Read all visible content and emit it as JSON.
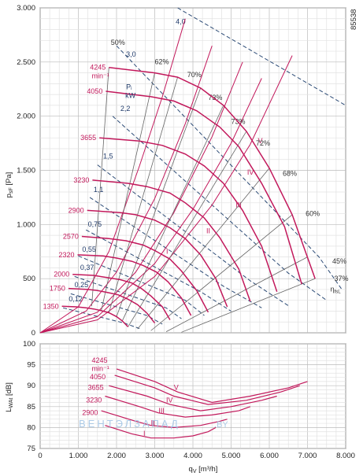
{
  "figure_id": "85538",
  "chart_data": [
    {
      "type": "line",
      "xlabel": "q",
      "xlabel_sub": "V",
      "xlabel_unit": "[m³/h]",
      "xlim": [
        0,
        8000
      ],
      "x_ticks": [
        0,
        1000,
        2000,
        3000,
        4000,
        5000,
        6000,
        7000,
        8000
      ],
      "x_tick_labels": [
        "0",
        "1.000",
        "2.000",
        "3.000",
        "4.000",
        "5.000",
        "6.000",
        "7.000",
        "8.000"
      ],
      "ylabel": "p",
      "ylabel_sub": "sF",
      "ylabel_unit": "[Pa]",
      "ylim": [
        0,
        3000
      ],
      "y_ticks": [
        0,
        500,
        1000,
        1500,
        2000,
        2500,
        3000
      ],
      "y_tick_labels": [
        "0",
        "500",
        "1.000",
        "1.500",
        "2.000",
        "2.500",
        "3.000"
      ],
      "grid": true,
      "speed_unit": "min⁻¹",
      "power_unit_label": "Pᵢ",
      "power_unit": "kW",
      "efficiency_label": "η",
      "efficiency_label_sub": "fsL",
      "speed_curves": [
        {
          "rpm": "4245",
          "x": [
            1800,
            3000,
            3600,
            4200,
            4800,
            5400,
            6000,
            6600,
            7200
          ],
          "y": [
            2450,
            2400,
            2360,
            2260,
            2100,
            1860,
            1520,
            1090,
            500
          ]
        },
        {
          "rpm": "4050",
          "x": [
            1720,
            2900,
            3500,
            4100,
            4700,
            5200,
            5800,
            6400,
            6850
          ],
          "y": [
            2230,
            2180,
            2140,
            2050,
            1900,
            1720,
            1380,
            980,
            450
          ]
        },
        {
          "rpm": "3655",
          "x": [
            1550,
            2600,
            3200,
            3800,
            4300,
            4800,
            5300,
            5800,
            6200
          ],
          "y": [
            1800,
            1770,
            1730,
            1650,
            1540,
            1380,
            1130,
            800,
            380
          ]
        },
        {
          "rpm": "3230",
          "x": [
            1370,
            2300,
            2800,
            3400,
            3800,
            4300,
            4700,
            5200,
            5500
          ],
          "y": [
            1410,
            1380,
            1350,
            1290,
            1200,
            1060,
            880,
            590,
            290
          ]
        },
        {
          "rpm": "2900",
          "x": [
            1230,
            2100,
            2500,
            3000,
            3400,
            3800,
            4200,
            4600,
            4900
          ],
          "y": [
            1130,
            1110,
            1090,
            1040,
            970,
            870,
            720,
            500,
            240
          ]
        },
        {
          "rpm": "2570",
          "x": [
            1090,
            1800,
            2250,
            2700,
            3000,
            3400,
            3700,
            4100,
            4400
          ],
          "y": [
            890,
            870,
            850,
            810,
            760,
            680,
            570,
            390,
            190
          ]
        },
        {
          "rpm": "2320",
          "x": [
            980,
            1650,
            2000,
            2400,
            2700,
            3050,
            3350,
            3700,
            3950
          ],
          "y": [
            720,
            710,
            690,
            660,
            620,
            560,
            470,
            320,
            160
          ]
        },
        {
          "rpm": "2000",
          "x": [
            850,
            1400,
            1750,
            2100,
            2400,
            2650,
            2900,
            3200,
            3400
          ],
          "y": [
            540,
            530,
            510,
            490,
            460,
            410,
            340,
            240,
            120
          ]
        },
        {
          "rpm": "1750",
          "x": [
            740,
            1250,
            1500,
            1800,
            2050,
            2300,
            2550,
            2800,
            3000
          ],
          "y": [
            410,
            400,
            390,
            370,
            350,
            310,
            260,
            180,
            90
          ]
        },
        {
          "rpm": "1350",
          "x": [
            570,
            950,
            1200,
            1400,
            1600,
            1800,
            2000,
            2150,
            2300
          ],
          "y": [
            245,
            240,
            230,
            220,
            205,
            185,
            150,
            110,
            55
          ]
        }
      ],
      "rpm_label_anchors": [
        {
          "rpm": "4245",
          "x": 1800,
          "y": 2450
        },
        {
          "rpm": "4050",
          "x": 1720,
          "y": 2230
        },
        {
          "rpm": "3655",
          "x": 1550,
          "y": 1800
        },
        {
          "rpm": "3230",
          "x": 1370,
          "y": 1410
        },
        {
          "rpm": "2900",
          "x": 1230,
          "y": 1130
        },
        {
          "rpm": "2570",
          "x": 1090,
          "y": 890
        },
        {
          "rpm": "2320",
          "x": 980,
          "y": 720
        },
        {
          "rpm": "2000",
          "x": 850,
          "y": 540
        },
        {
          "rpm": "1750",
          "x": 740,
          "y": 410
        },
        {
          "rpm": "1350",
          "x": 570,
          "y": 245
        }
      ],
      "system_curves": [
        {
          "name": "V",
          "x": [
            0,
            1500,
            3000,
            4500,
            5500,
            6600
          ],
          "y": [
            0,
            120,
            520,
            1180,
            1740,
            2560
          ],
          "label_at": {
            "x": 5700,
            "y": 1750
          }
        },
        {
          "name": "IV",
          "x": [
            0,
            1500,
            3000,
            4000,
            5000,
            5800
          ],
          "y": [
            0,
            150,
            640,
            1140,
            1750,
            2350
          ],
          "label_at": {
            "x": 5420,
            "y": 1460
          }
        },
        {
          "name": "III",
          "x": [
            0,
            1500,
            2500,
            3500,
            4500,
            5300
          ],
          "y": [
            0,
            190,
            560,
            1110,
            1810,
            2500
          ],
          "label_at": {
            "x": 5120,
            "y": 1160
          }
        },
        {
          "name": "II",
          "x": [
            0,
            1200,
            2000,
            3000,
            3800,
            4500
          ],
          "y": [
            0,
            200,
            560,
            1240,
            1930,
            2650
          ],
          "label_at": {
            "x": 4350,
            "y": 920
          }
        },
        {
          "name": "I",
          "x": [
            0,
            1000,
            1800,
            2600,
            3200,
            3800
          ],
          "y": [
            0,
            240,
            750,
            1540,
            2180,
            2900
          ],
          "label_at": {
            "x": 3300,
            "y": 730
          }
        }
      ],
      "power_lines": [
        {
          "label": "4,0",
          "x": [
            3600,
            8000
          ],
          "y": [
            3000,
            2100
          ],
          "label_at": {
            "x": 3550,
            "y": 2850
          }
        },
        {
          "label": "3,0",
          "x": [
            2000,
            7300,
            7900
          ],
          "y": [
            2650,
            700,
            400
          ],
          "label_at": {
            "x": 2250,
            "y": 2550
          }
        },
        {
          "label": "2,2",
          "x": [
            1900,
            6500,
            7500
          ],
          "y": [
            2000,
            550,
            300
          ],
          "label_at": {
            "x": 2100,
            "y": 2050
          }
        },
        {
          "label": "1,5",
          "x": [
            1500,
            5500,
            6500
          ],
          "y": [
            1550,
            480,
            250
          ],
          "label_at": {
            "x": 1650,
            "y": 1610
          }
        },
        {
          "label": "1,1",
          "x": [
            1300,
            4800,
            5800
          ],
          "y": [
            1250,
            430,
            230
          ],
          "label_at": {
            "x": 1400,
            "y": 1300
          }
        },
        {
          "label": "0,75",
          "x": [
            1200,
            4200,
            5000
          ],
          "y": [
            950,
            380,
            200
          ],
          "label_at": {
            "x": 1250,
            "y": 980
          }
        },
        {
          "label": "0,55",
          "x": [
            1000,
            3800,
            4300
          ],
          "y": [
            710,
            300,
            160
          ],
          "label_at": {
            "x": 1100,
            "y": 750
          }
        },
        {
          "label": "0,37",
          "x": [
            900,
            3300,
            3700
          ],
          "y": [
            520,
            230,
            130
          ],
          "label_at": {
            "x": 1050,
            "y": 580
          }
        },
        {
          "label": "0,25",
          "x": [
            800,
            2800,
            3200
          ],
          "y": [
            360,
            160,
            80
          ],
          "label_at": {
            "x": 900,
            "y": 420
          }
        },
        {
          "label": "0,12",
          "x": [
            600,
            2200,
            2600
          ],
          "y": [
            230,
            90,
            40
          ],
          "label_at": {
            "x": 750,
            "y": 290
          }
        }
      ],
      "efficiency_lines": [
        {
          "label": "50%",
          "x1": 1800,
          "y1": 2450,
          "x2": 1350,
          "y2": 245,
          "label_at": {
            "x": 1850,
            "y": 2660
          }
        },
        {
          "label": "62%",
          "x1": 3000,
          "y1": 2400,
          "x2": 1600,
          "y2": 205,
          "label_at": {
            "x": 3000,
            "y": 2480
          }
        },
        {
          "label": "70%",
          "x1": 3600,
          "y1": 2360,
          "x2": 1800,
          "y2": 185,
          "label_at": {
            "x": 3850,
            "y": 2360
          }
        },
        {
          "label": "73%",
          "x1": 4200,
          "y1": 2260,
          "x2": 2000,
          "y2": 150,
          "label_at": {
            "x": 4400,
            "y": 2150
          }
        },
        {
          "label": "73%",
          "x1": 4800,
          "y1": 2100,
          "x2": 2150,
          "y2": 110,
          "label_at": {
            "x": 5000,
            "y": 1930
          }
        },
        {
          "label": "72%",
          "x1": 5400,
          "y1": 1860,
          "x2": 2300,
          "y2": 55,
          "label_at": {
            "x": 5650,
            "y": 1730
          }
        },
        {
          "label": "68%",
          "x1": 6000,
          "y1": 1520,
          "x2": 2550,
          "y2": 35,
          "label_at": {
            "x": 6350,
            "y": 1450
          }
        },
        {
          "label": "60%",
          "x1": 6600,
          "y1": 1090,
          "x2": 2900,
          "y2": 20,
          "label_at": {
            "x": 6950,
            "y": 1080
          }
        },
        {
          "label": "45%",
          "x1": 7000,
          "y1": 700,
          "x2": 3300,
          "y2": 10,
          "label_at": {
            "x": 7650,
            "y": 640
          }
        },
        {
          "label": "37%",
          "x1": 7200,
          "y1": 500,
          "x2": 3700,
          "y2": 5,
          "label_at": {
            "x": 7700,
            "y": 480
          }
        }
      ]
    },
    {
      "type": "line",
      "xlim": [
        0,
        8000
      ],
      "ylim": [
        75,
        100
      ],
      "y_ticks": [
        75,
        80,
        85,
        90,
        95,
        100
      ],
      "y_tick_labels": [
        "75",
        "80",
        "85",
        "90",
        "95",
        "100"
      ],
      "ylabel": "L",
      "ylabel_sub": "WAt",
      "ylabel_unit": "[dB]",
      "grid": true,
      "speed_unit": "min⁻¹",
      "noise_curves": [
        {
          "rpm": "4245",
          "x": [
            2000,
            3000,
            3600,
            4500,
            5500,
            6500,
            7000
          ],
          "y": [
            94.0,
            91.0,
            88.5,
            86.0,
            87.5,
            89.5,
            91.0
          ]
        },
        {
          "rpm": "4050",
          "x": [
            1950,
            3000,
            3500,
            4400,
            5400,
            6300,
            6800
          ],
          "y": [
            92.5,
            89.5,
            87.5,
            85.5,
            86.5,
            88.5,
            90.0
          ]
        },
        {
          "rpm": "3655",
          "x": [
            1800,
            2800,
            3400,
            4200,
            5000,
            5800,
            6200
          ],
          "y": [
            90.0,
            87.5,
            85.5,
            84.0,
            85.0,
            86.5,
            87.5
          ]
        },
        {
          "rpm": "3230",
          "x": [
            1700,
            2600,
            3100,
            3800,
            4500,
            5200,
            5500
          ],
          "y": [
            87.5,
            85.0,
            83.5,
            82.5,
            83.0,
            84.0,
            85.0
          ]
        },
        {
          "rpm": "2900",
          "x": [
            1600,
            2500,
            2900,
            3500,
            4200,
            4700,
            4900
          ],
          "y": [
            84.0,
            81.5,
            80.5,
            80.0,
            80.5,
            81.5,
            82.0
          ]
        },
        {
          "rpm": "",
          "x": [
            1700,
            2400,
            2900,
            3500,
            4000,
            4400,
            4600
          ],
          "y": [
            80.5,
            78.5,
            77.5,
            77.5,
            78.0,
            79.0,
            80.0
          ]
        }
      ],
      "noise_curve_labels": [
        {
          "name": "V",
          "x": 3500,
          "y": 89.0
        },
        {
          "name": "IV",
          "x": 3300,
          "y": 86.0
        },
        {
          "name": "III",
          "x": 3100,
          "y": 83.5
        },
        {
          "name": "II",
          "x": 2900,
          "y": 80.5
        },
        {
          "name": "I",
          "x": 2700,
          "y": 78.0
        }
      ],
      "rpm_labels": [
        {
          "rpm": "4245",
          "x": 1350,
          "y": 95.5
        },
        {
          "rpm": "4050",
          "x": 1300,
          "y": 91.5
        },
        {
          "rpm": "3655",
          "x": 1250,
          "y": 89.0
        },
        {
          "rpm": "3230",
          "x": 1200,
          "y": 86.0
        },
        {
          "rpm": "2900",
          "x": 1100,
          "y": 83.0
        }
      ]
    }
  ],
  "watermark": {
    "left": "ВЕНТЭЛЗАПАД",
    "right": ".BY"
  }
}
